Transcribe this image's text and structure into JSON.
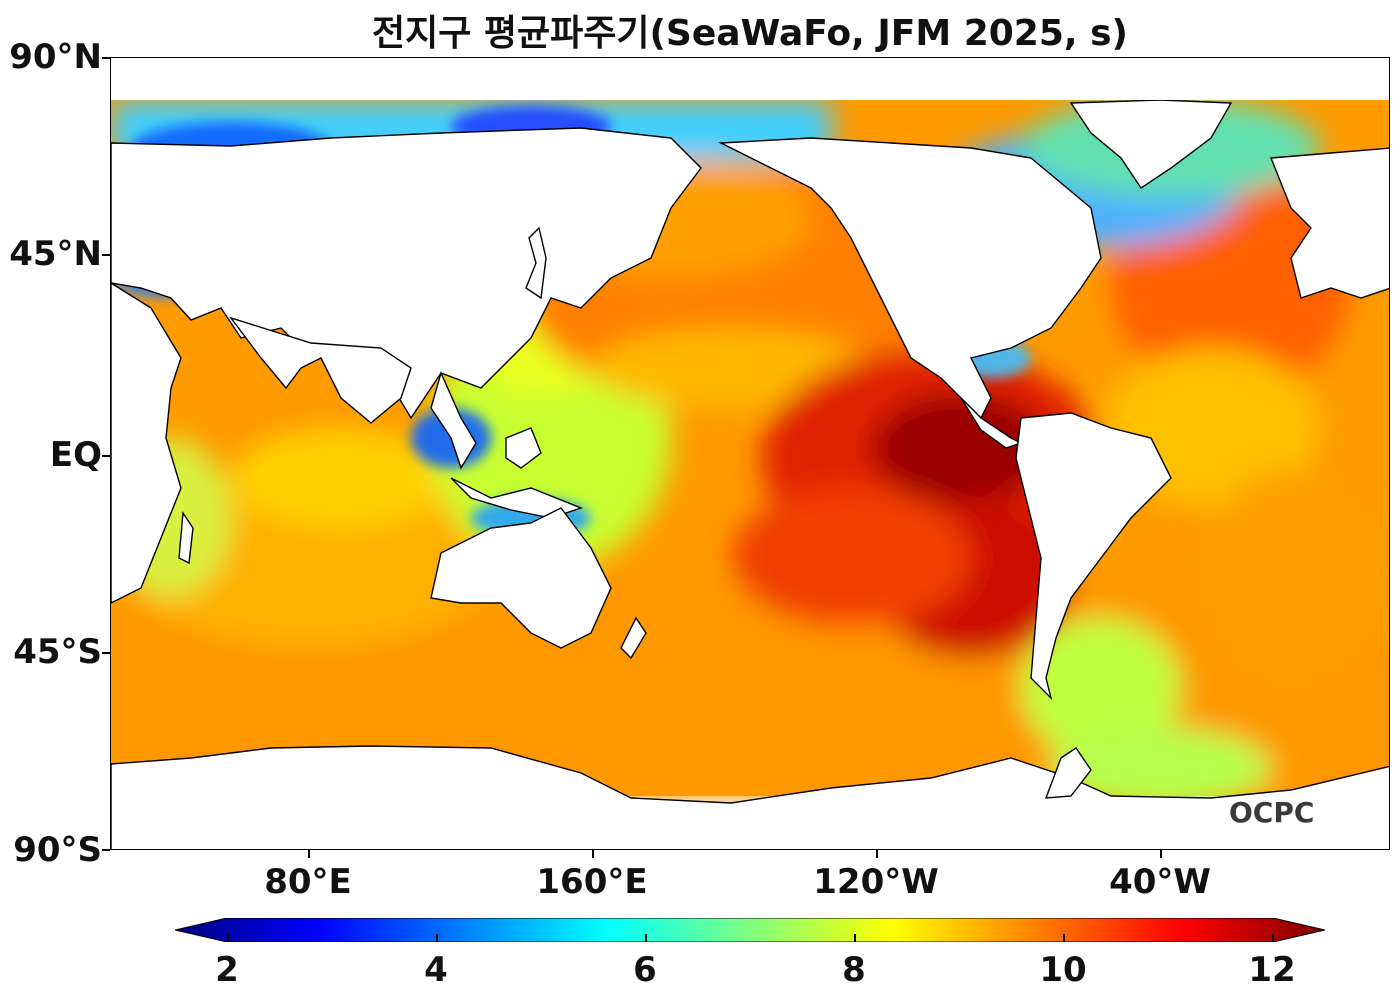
{
  "title": "전지구 평균파주기(SeaWaFo, JFM 2025, s)",
  "logo": "OCPC",
  "lat_labels": [
    "90°N",
    "45°N",
    "EQ",
    "45°S",
    "90°S"
  ],
  "lon_labels": [
    "80°E",
    "160°E",
    "120°W",
    "40°W"
  ],
  "colorbar": {
    "ticks": [
      "2",
      "4",
      "6",
      "8",
      "10",
      "12"
    ],
    "min": 2,
    "max": 12,
    "colormap": "jet",
    "extend": "both",
    "colors": [
      "#00007f",
      "#0000ff",
      "#007fff",
      "#00ffff",
      "#7fff7f",
      "#ffff00",
      "#ff7f00",
      "#ff0000",
      "#7f0000"
    ]
  },
  "colors": {
    "land": "#ffffff",
    "coastline": "#000000"
  }
}
